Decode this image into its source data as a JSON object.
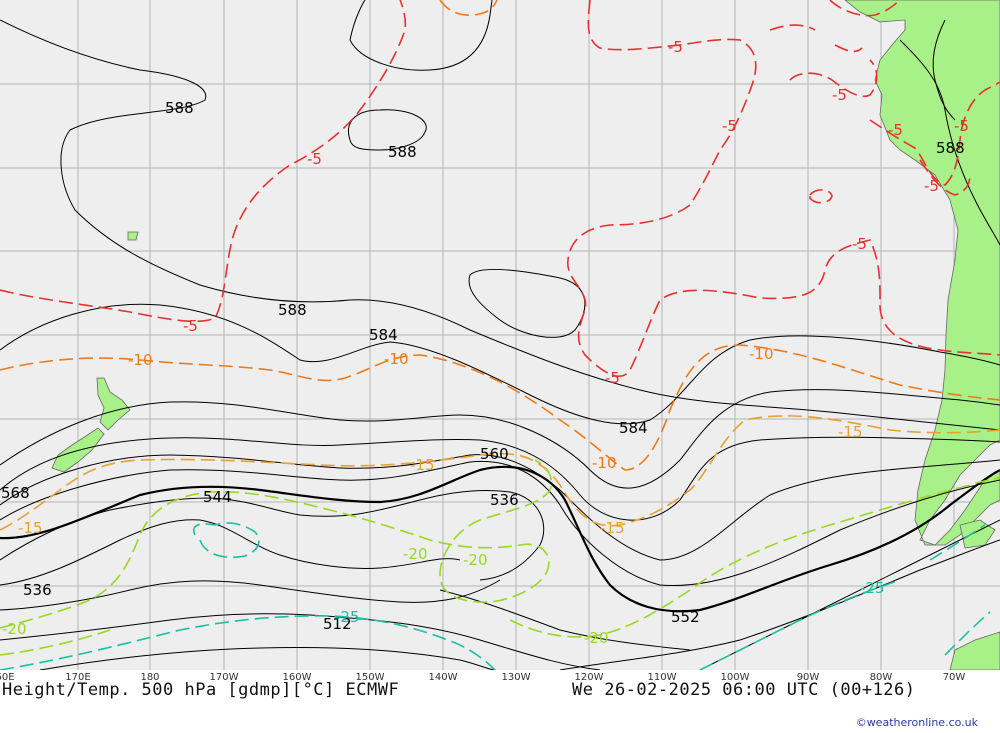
{
  "header": {
    "title_left": "Height/Temp. 500 hPa [gdmp][°C] ECMWF",
    "title_right": "We 26-02-2025 06:00 UTC (00+126)",
    "credit": "©weatheronline.co.uk"
  },
  "axis": {
    "lon_labels": [
      "60E",
      "170E",
      "180",
      "170W",
      "160W",
      "150W",
      "140W",
      "130W",
      "120W",
      "110W",
      "100W",
      "90W",
      "80W",
      "70W"
    ]
  },
  "height_labels": [
    "588",
    "588",
    "588",
    "588",
    "584",
    "584",
    "560",
    "536",
    "544",
    "568",
    "536",
    "512",
    "552"
  ],
  "temp_labels": [
    "-5",
    "-5",
    "-5",
    "-5",
    "-5",
    "-5",
    "-5",
    "-5",
    "-5",
    "-5",
    "-10",
    "-10",
    "-10",
    "-10",
    "-15",
    "-15",
    "-15",
    "-15",
    "-20",
    "-20",
    "-20",
    "-20",
    "-25",
    "-25"
  ],
  "colors": {
    "sea": "#eeeeee",
    "land": "#a8f088",
    "grid": "#b4b4b4",
    "height": "#000000",
    "t_minus5": "#e83030",
    "t_minus10": "#f07a18",
    "t_minus15": "#e8a030",
    "t_minus20": "#98d820",
    "t_minus25": "#18c0a0"
  }
}
